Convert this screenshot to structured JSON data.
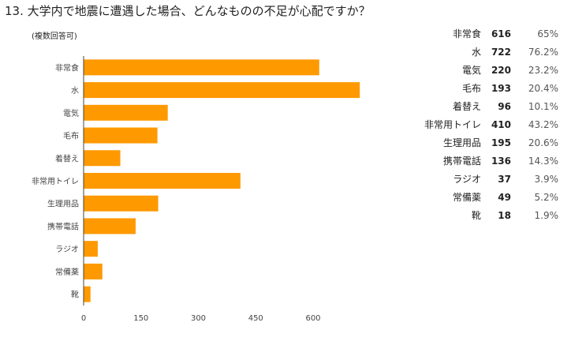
{
  "title": "13. 大学内で地震に遭遇した場合、どんなものの不足が心配ですか？",
  "note": "(複数回答可)",
  "colors": {
    "bar": "#ff9900",
    "axis": "#444444"
  },
  "chart_data": {
    "type": "bar",
    "orientation": "horizontal",
    "categories": [
      "非常食",
      "水",
      "電気",
      "毛布",
      "着替え",
      "非常用トイレ",
      "生理用品",
      "携帯電話",
      "ラジオ",
      "常備薬",
      "靴"
    ],
    "values": [
      616,
      722,
      220,
      193,
      96,
      410,
      195,
      136,
      37,
      49,
      18
    ],
    "xticks": [
      "0",
      "150",
      "300",
      "450",
      "600"
    ],
    "xlim": [
      0,
      750
    ],
    "grid": false
  },
  "table": {
    "rows": [
      {
        "label": "非常食",
        "count": "616",
        "percent": "65%"
      },
      {
        "label": "水",
        "count": "722",
        "percent": "76.2%"
      },
      {
        "label": "電気",
        "count": "220",
        "percent": "23.2%"
      },
      {
        "label": "毛布",
        "count": "193",
        "percent": "20.4%"
      },
      {
        "label": "着替え",
        "count": "96",
        "percent": "10.1%"
      },
      {
        "label": "非常用トイレ",
        "count": "410",
        "percent": "43.2%"
      },
      {
        "label": "生理用品",
        "count": "195",
        "percent": "20.6%"
      },
      {
        "label": "携帯電話",
        "count": "136",
        "percent": "14.3%"
      },
      {
        "label": "ラジオ",
        "count": "37",
        "percent": "3.9%"
      },
      {
        "label": "常備薬",
        "count": "49",
        "percent": "5.2%"
      },
      {
        "label": "靴",
        "count": "18",
        "percent": "1.9%"
      }
    ]
  }
}
